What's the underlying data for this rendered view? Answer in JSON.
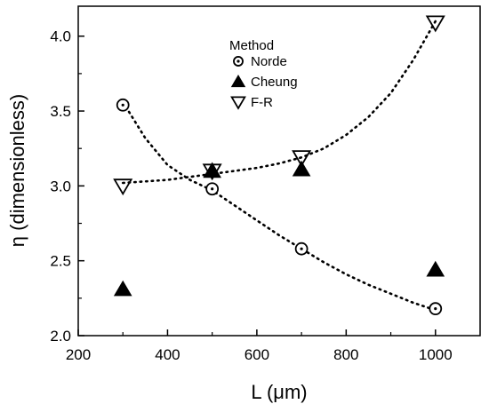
{
  "chart_data": {
    "type": "scatter",
    "xlabel": "L (μm)",
    "ylabel": "η (dimensionless)",
    "xlim": [
      200,
      1100
    ],
    "ylim": [
      2.0,
      4.2
    ],
    "x_ticks": [
      200,
      400,
      600,
      800,
      1000
    ],
    "y_ticks": [
      "2.0",
      "2.5",
      "3.0",
      "3.5",
      "4.0"
    ],
    "grid": false,
    "legend": {
      "title": "Method",
      "placement": "top-center"
    },
    "series": [
      {
        "name": "Norde",
        "marker": "circle-open",
        "x": [
          300,
          500,
          700,
          1000
        ],
        "y": [
          3.54,
          2.98,
          2.58,
          2.18
        ],
        "fit_x": [
          300,
          350,
          400,
          450,
          500,
          550,
          600,
          650,
          700,
          750,
          800,
          850,
          900,
          950,
          1000
        ],
        "fit_y": [
          3.56,
          3.32,
          3.14,
          3.04,
          2.97,
          2.87,
          2.77,
          2.67,
          2.58,
          2.49,
          2.41,
          2.34,
          2.28,
          2.22,
          2.17
        ]
      },
      {
        "name": "Cheung",
        "marker": "triangle-up-filled",
        "x": [
          300,
          500,
          700,
          1000
        ],
        "y": [
          2.31,
          3.1,
          3.11,
          2.44
        ]
      },
      {
        "name": "F-R",
        "marker": "triangle-down-open",
        "x": [
          300,
          500,
          700,
          1000
        ],
        "y": [
          3.0,
          3.1,
          3.19,
          4.09
        ],
        "fit_x": [
          300,
          350,
          400,
          450,
          500,
          550,
          600,
          650,
          700,
          750,
          800,
          850,
          900,
          950,
          1000
        ],
        "fit_y": [
          3.02,
          3.03,
          3.04,
          3.06,
          3.08,
          3.1,
          3.12,
          3.15,
          3.19,
          3.25,
          3.34,
          3.46,
          3.62,
          3.84,
          4.1
        ]
      }
    ]
  }
}
